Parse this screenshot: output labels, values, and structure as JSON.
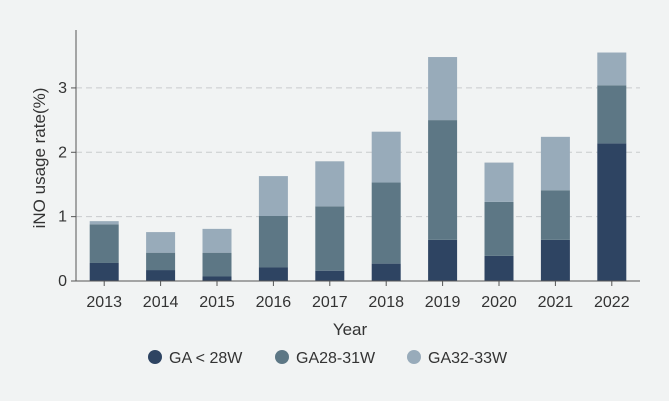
{
  "chart_data": {
    "type": "bar",
    "stacked": true,
    "title": "",
    "xlabel": "Year",
    "ylabel": "iNO usage rate(%)",
    "ylim": [
      0,
      3.9
    ],
    "yticks": [
      0,
      1,
      2,
      3
    ],
    "grid": "horizontal dashed",
    "legend_position": "bottom",
    "categories": [
      "2013",
      "2014",
      "2015",
      "2016",
      "2017",
      "2018",
      "2019",
      "2020",
      "2021",
      "2022"
    ],
    "series": [
      {
        "name": "GA < 28W",
        "color": "#2e4462",
        "values": [
          0.28,
          0.17,
          0.07,
          0.21,
          0.16,
          0.27,
          0.64,
          0.39,
          0.64,
          2.14
        ]
      },
      {
        "name": "GA28-31W",
        "color": "#5d7785",
        "values": [
          0.6,
          0.27,
          0.37,
          0.8,
          1.0,
          1.26,
          1.86,
          0.84,
          0.77,
          0.9
        ]
      },
      {
        "name": "GA32-33W",
        "color": "#98abba",
        "values": [
          0.05,
          0.32,
          0.37,
          0.62,
          0.7,
          0.79,
          0.98,
          0.61,
          0.83,
          0.51
        ]
      }
    ]
  }
}
